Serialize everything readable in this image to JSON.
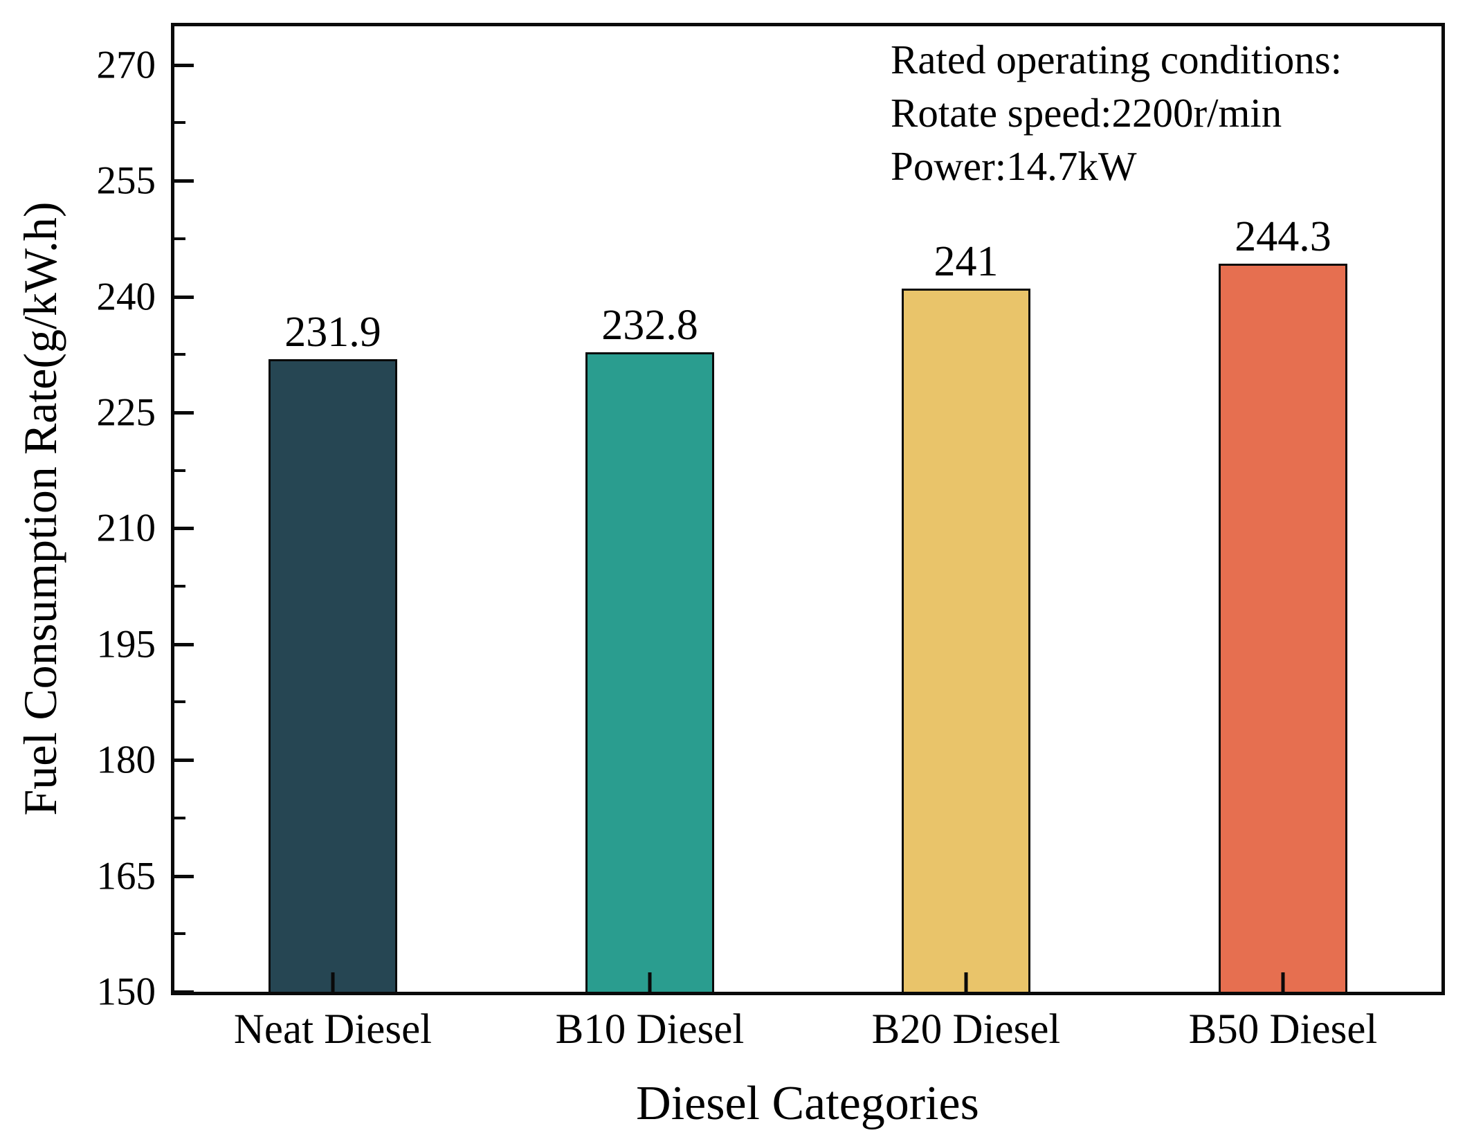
{
  "figure": {
    "background": "#ffffff",
    "text_color": "#000000",
    "axis_color": "#0a0a0a"
  },
  "chart_data": {
    "type": "bar",
    "title": "",
    "categories": [
      "Neat Diesel",
      "B10 Diesel",
      "B20 Diesel",
      "B50 Diesel"
    ],
    "values": [
      231.9,
      232.8,
      241,
      244.3
    ],
    "value_labels": [
      "231.9",
      "232.8",
      "241",
      "244.3"
    ],
    "bar_colors": [
      "#264653",
      "#2a9d8f",
      "#e9c46a",
      "#e66f50"
    ],
    "bar_edge_color": "#0a0a0a",
    "xlabel": "Diesel Categories",
    "ylabel": "Fuel Consumption Rate(g/kW.h)",
    "ylim": [
      150,
      275
    ],
    "yticks": [
      150,
      165,
      180,
      195,
      210,
      225,
      240,
      255,
      270
    ],
    "ytick_labels": [
      "150",
      "165",
      "180",
      "195",
      "210",
      "225",
      "240",
      "255",
      "270"
    ],
    "minor_yticks": [
      157.5,
      172.5,
      187.5,
      202.5,
      217.5,
      232.5,
      247.5,
      262.5
    ],
    "tick_direction": "in",
    "grid": false,
    "legend": null,
    "annotation_lines": [
      "Rated operating conditions:",
      "Rotate speed:2200r/min",
      "Power:14.7kW"
    ]
  }
}
